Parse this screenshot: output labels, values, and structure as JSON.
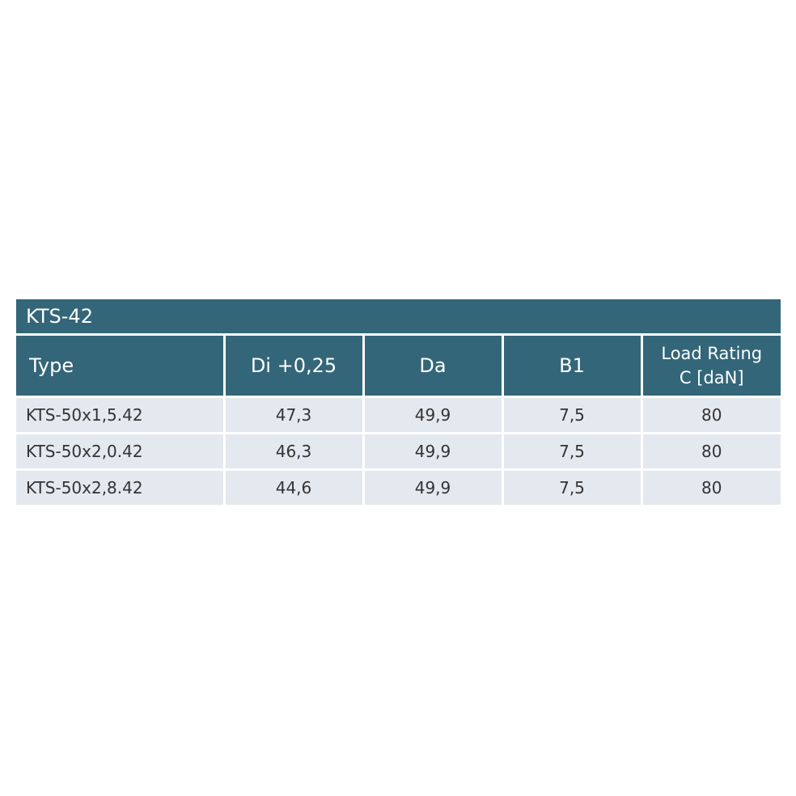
{
  "table": {
    "title": "KTS-42",
    "header": [
      "Type",
      "Di +0,25",
      "Da",
      "B1",
      [
        "Load Rating",
        "C [daN]"
      ]
    ],
    "rows": [
      [
        "KTS-50x1,5.42",
        "47,3",
        "49,9",
        "7,5",
        "80"
      ],
      [
        "KTS-50x2,0.42",
        "46,3",
        "49,9",
        "7,5",
        "80"
      ],
      [
        "KTS-50x2,8.42",
        "44,6",
        "49,9",
        "7,5",
        "80"
      ]
    ]
  }
}
